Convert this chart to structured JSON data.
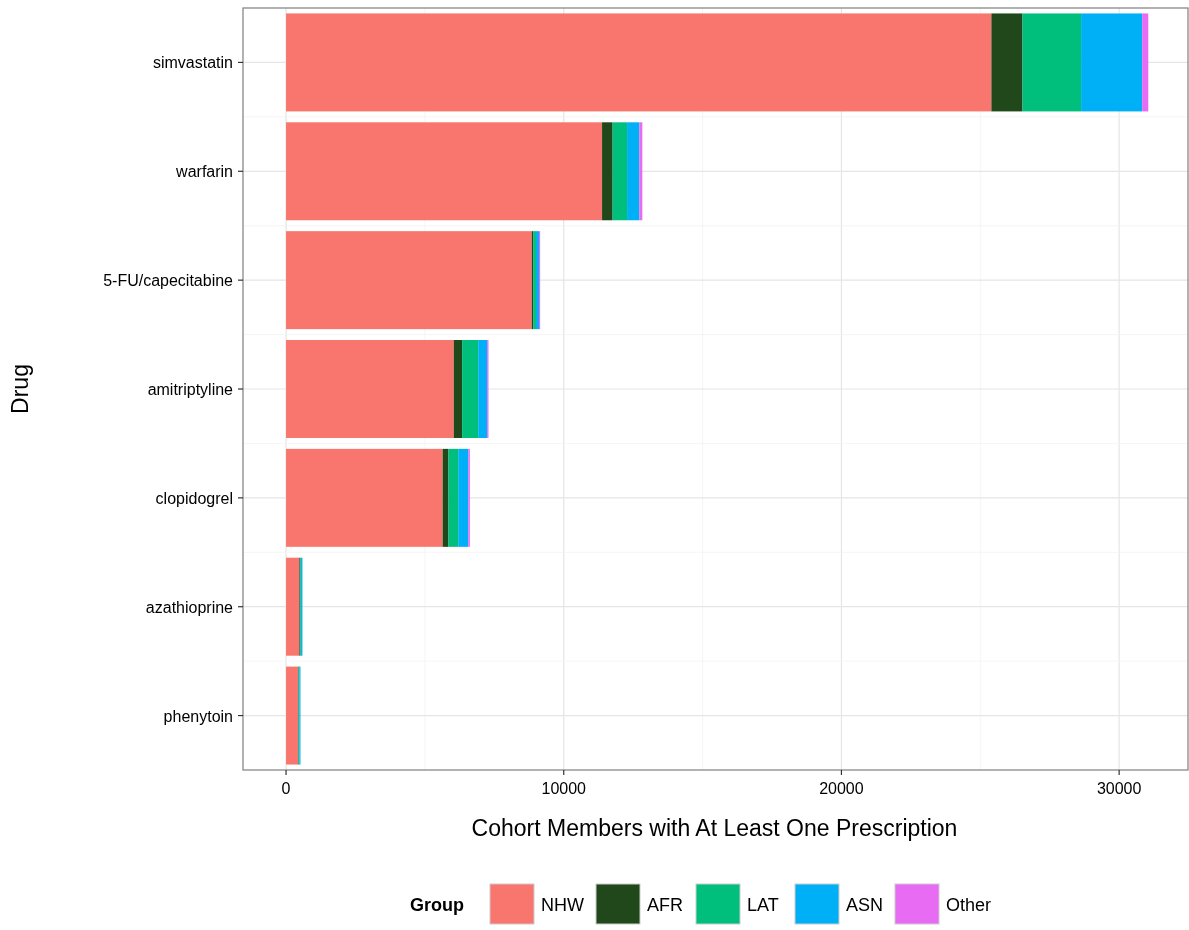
{
  "chart_data": {
    "type": "bar",
    "orientation": "horizontal",
    "stacked": true,
    "xlabel": "Cohort Members with At Least One Prescription",
    "ylabel": "Drug",
    "legend_title": "Group",
    "legend": "bottom",
    "grid": true,
    "categories": [
      "simvastatin",
      "warfarin",
      "5-FU/capecitabine",
      "amitriptyline",
      "clopidogrel",
      "azathioprine",
      "phenytoin"
    ],
    "xlim": [
      -1550,
      32480
    ],
    "xticks": [
      0,
      10000,
      20000,
      30000
    ],
    "series": [
      {
        "name": "NHW",
        "color": "#f8766d",
        "values": [
          25400,
          11380,
          8850,
          6040,
          5640,
          480,
          430
        ]
      },
      {
        "name": "AFR",
        "color": "#20481a",
        "values": [
          1120,
          380,
          50,
          300,
          210,
          30,
          20
        ]
      },
      {
        "name": "LAT",
        "color": "#00bf7d",
        "values": [
          2110,
          520,
          100,
          580,
          350,
          30,
          30
        ]
      },
      {
        "name": "ASN",
        "color": "#00b0f6",
        "values": [
          2200,
          440,
          110,
          320,
          360,
          50,
          40
        ]
      },
      {
        "name": "Other",
        "color": "#e76bf3",
        "values": [
          220,
          110,
          40,
          50,
          60,
          0,
          0
        ]
      }
    ]
  }
}
